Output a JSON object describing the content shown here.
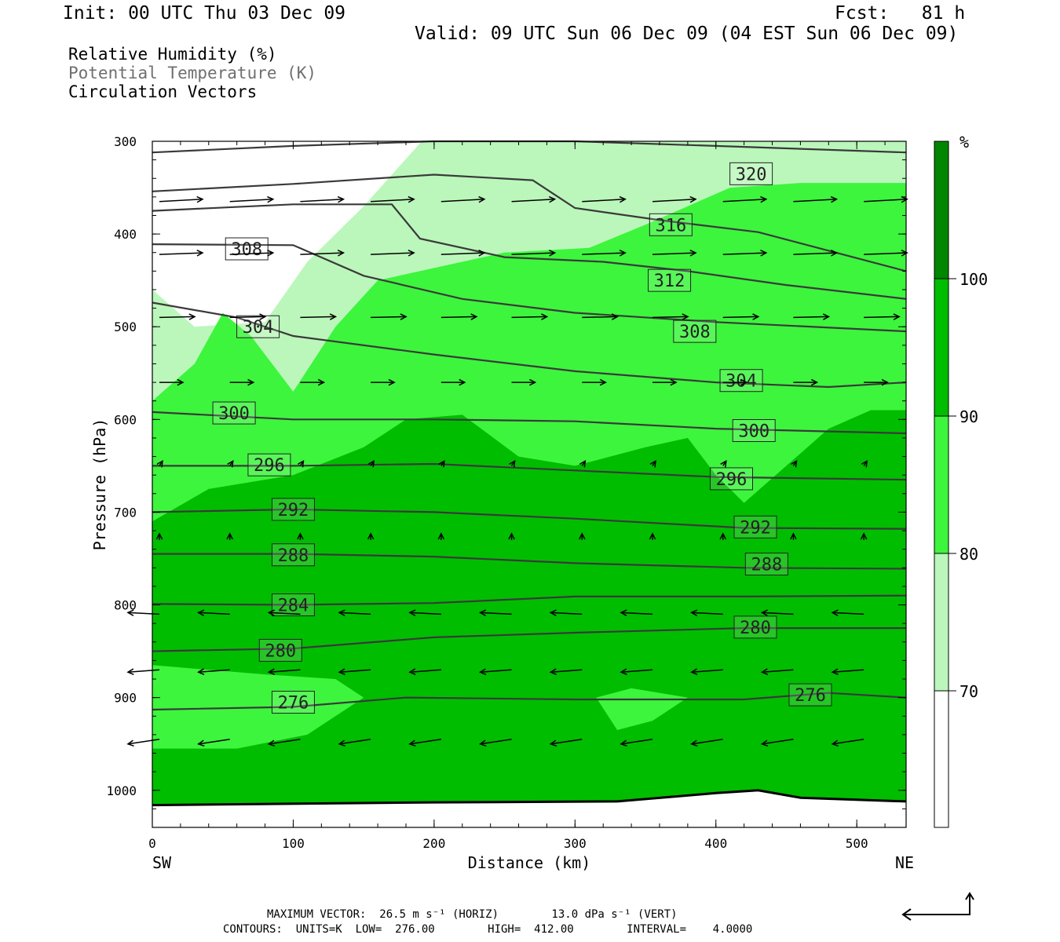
{
  "header": {
    "init": "Init: 00 UTC Thu 03 Dec 09",
    "fcst": "Fcst:   81 h",
    "valid": "Valid: 09 UTC Sun 06 Dec 09 (04 EST Sun 06 Dec 09)"
  },
  "fields": [
    {
      "label": "Relative Humidity (%)",
      "color": "#000000"
    },
    {
      "label": "Potential Temperature (K)",
      "color": "#6f6f6f"
    },
    {
      "label": "Circulation Vectors",
      "color": "#000000"
    }
  ],
  "chart_data": {
    "type": "cross-section",
    "xlabel": "Distance (km)",
    "ylabel": "Pressure (hPa)",
    "xlim": [
      0,
      535
    ],
    "ylim": [
      300,
      1040
    ],
    "x_ticks": [
      0,
      100,
      200,
      300,
      400,
      500
    ],
    "y_ticks": [
      300,
      400,
      500,
      600,
      700,
      800,
      900,
      1000
    ],
    "x_ends": {
      "left": "SW",
      "right": "NE"
    },
    "rh_colorbar": {
      "unit": "%",
      "levels": [
        70,
        80,
        90,
        100
      ],
      "colors": [
        "#ffffff",
        "#bbf7bb",
        "#3cf53c",
        "#00bd00",
        "#008600"
      ]
    },
    "isentropes_K": [
      {
        "label": "320",
        "label_at": [
          425,
          335
        ],
        "points": [
          [
            0,
            312
          ],
          [
            100,
            305
          ],
          [
            200,
            300
          ],
          [
            300,
            300
          ],
          [
            400,
            305
          ],
          [
            535,
            312
          ]
        ]
      },
      {
        "label": "316",
        "label_at": [
          368,
          390
        ],
        "points": [
          [
            0,
            354
          ],
          [
            100,
            346
          ],
          [
            200,
            336
          ],
          [
            270,
            342
          ],
          [
            300,
            372
          ],
          [
            360,
            385
          ],
          [
            430,
            398
          ],
          [
            535,
            440
          ]
        ]
      },
      {
        "label": "312",
        "label_at": [
          367,
          450
        ],
        "points": [
          [
            0,
            375
          ],
          [
            100,
            368
          ],
          [
            170,
            368
          ],
          [
            190,
            405
          ],
          [
            250,
            425
          ],
          [
            320,
            430
          ],
          [
            380,
            440
          ],
          [
            450,
            455
          ],
          [
            535,
            470
          ]
        ]
      },
      {
        "label": "308",
        "label_at": [
          67,
          416
        ],
        "points": [
          [
            0,
            411
          ],
          [
            100,
            412
          ],
          [
            150,
            445
          ],
          [
            220,
            470
          ],
          [
            300,
            485
          ],
          [
            400,
            495
          ],
          [
            535,
            505
          ]
        ]
      },
      {
        "label": "308",
        "label_at": [
          385,
          505
        ],
        "points": [
          [
            0,
            411
          ],
          [
            100,
            412
          ],
          [
            150,
            445
          ],
          [
            220,
            470
          ],
          [
            300,
            485
          ],
          [
            400,
            495
          ],
          [
            535,
            505
          ]
        ]
      },
      {
        "label": "304",
        "label_at": [
          75,
          500
        ],
        "points": [
          [
            0,
            474
          ],
          [
            60,
            490
          ],
          [
            100,
            510
          ],
          [
            200,
            530
          ],
          [
            300,
            548
          ],
          [
            400,
            560
          ],
          [
            480,
            565
          ],
          [
            535,
            560
          ]
        ]
      },
      {
        "label": "304",
        "label_at": [
          418,
          558
        ],
        "points": [
          [
            0,
            474
          ],
          [
            60,
            490
          ],
          [
            100,
            510
          ],
          [
            200,
            530
          ],
          [
            300,
            548
          ],
          [
            400,
            560
          ],
          [
            480,
            565
          ],
          [
            535,
            560
          ]
        ]
      },
      {
        "label": "300",
        "label_at": [
          58,
          593
        ],
        "points": [
          [
            0,
            592
          ],
          [
            100,
            600
          ],
          [
            200,
            600
          ],
          [
            300,
            602
          ],
          [
            400,
            610
          ],
          [
            535,
            615
          ]
        ]
      },
      {
        "label": "300",
        "label_at": [
          427,
          612
        ],
        "points": [
          [
            0,
            592
          ],
          [
            100,
            600
          ],
          [
            200,
            600
          ],
          [
            300,
            602
          ],
          [
            400,
            610
          ],
          [
            535,
            615
          ]
        ]
      },
      {
        "label": "296",
        "label_at": [
          83,
          649
        ],
        "points": [
          [
            0,
            650
          ],
          [
            100,
            650
          ],
          [
            200,
            648
          ],
          [
            300,
            655
          ],
          [
            400,
            662
          ],
          [
            535,
            665
          ]
        ]
      },
      {
        "label": "296",
        "label_at": [
          411,
          664
        ],
        "points": [
          [
            0,
            650
          ],
          [
            100,
            650
          ],
          [
            200,
            648
          ],
          [
            300,
            655
          ],
          [
            400,
            662
          ],
          [
            535,
            665
          ]
        ]
      },
      {
        "label": "292",
        "label_at": [
          100,
          697
        ],
        "points": [
          [
            0,
            700
          ],
          [
            100,
            697
          ],
          [
            200,
            700
          ],
          [
            300,
            707
          ],
          [
            420,
            717
          ],
          [
            535,
            718
          ]
        ]
      },
      {
        "label": "292",
        "label_at": [
          428,
          716
        ],
        "points": [
          [
            0,
            700
          ],
          [
            100,
            697
          ],
          [
            200,
            700
          ],
          [
            300,
            707
          ],
          [
            420,
            717
          ],
          [
            535,
            718
          ]
        ]
      },
      {
        "label": "288",
        "label_at": [
          100,
          746
        ],
        "points": [
          [
            0,
            745
          ],
          [
            100,
            745
          ],
          [
            200,
            748
          ],
          [
            300,
            755
          ],
          [
            420,
            760
          ],
          [
            535,
            761
          ]
        ]
      },
      {
        "label": "288",
        "label_at": [
          436,
          756
        ],
        "points": [
          [
            0,
            745
          ],
          [
            100,
            745
          ],
          [
            200,
            748
          ],
          [
            300,
            755
          ],
          [
            420,
            760
          ],
          [
            535,
            761
          ]
        ]
      },
      {
        "label": "284",
        "label_at": [
          100,
          800
        ],
        "points": [
          [
            0,
            799
          ],
          [
            100,
            800
          ],
          [
            200,
            798
          ],
          [
            300,
            791
          ],
          [
            420,
            791
          ],
          [
            535,
            790
          ]
        ]
      },
      {
        "label": "280",
        "label_at": [
          91,
          849
        ],
        "points": [
          [
            0,
            850
          ],
          [
            100,
            847
          ],
          [
            200,
            835
          ],
          [
            300,
            830
          ],
          [
            420,
            825
          ],
          [
            535,
            825
          ]
        ]
      },
      {
        "label": "280",
        "label_at": [
          428,
          824
        ],
        "points": [
          [
            0,
            850
          ],
          [
            100,
            847
          ],
          [
            200,
            835
          ],
          [
            300,
            830
          ],
          [
            420,
            825
          ],
          [
            535,
            825
          ]
        ]
      },
      {
        "label": "276",
        "label_at": [
          100,
          905
        ],
        "points": [
          [
            0,
            913
          ],
          [
            100,
            910
          ],
          [
            180,
            900
          ],
          [
            300,
            902
          ],
          [
            420,
            902
          ],
          [
            480,
            895
          ],
          [
            535,
            900
          ]
        ]
      },
      {
        "label": "276",
        "label_at": [
          467,
          897
        ],
        "points": [
          [
            0,
            913
          ],
          [
            100,
            910
          ],
          [
            180,
            900
          ],
          [
            300,
            902
          ],
          [
            420,
            902
          ],
          [
            480,
            895
          ],
          [
            535,
            900
          ]
        ]
      }
    ]
  },
  "footer": {
    "vector_line": "MAXIMUM VECTOR:  26.5 m s⁻¹ (HORIZ)        13.0 dPa s⁻¹ (VERT)",
    "contours_line": "CONTOURS:  UNITS=K  LOW=  276.00        HIGH=  412.00        INTERVAL=    4.0000"
  }
}
